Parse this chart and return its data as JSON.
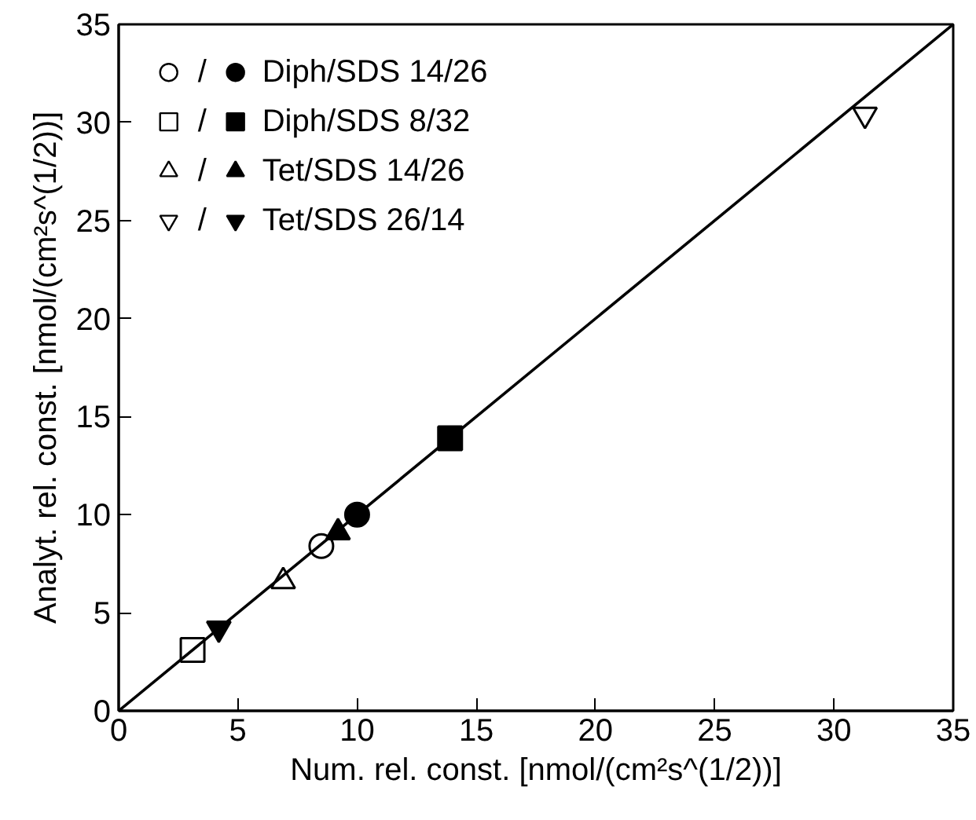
{
  "chart_data": {
    "type": "scatter",
    "xlabel": "Num. rel. const. [nmol/(cm²s^(1/2))]",
    "ylabel": "Analyt. rel. const. [nmol/(cm²s^(1/2))]",
    "xlim": [
      0,
      35
    ],
    "ylim": [
      0,
      35
    ],
    "xticks": [
      0,
      5,
      10,
      15,
      20,
      25,
      30,
      35
    ],
    "yticks": [
      0,
      5,
      10,
      15,
      20,
      25,
      30,
      35
    ],
    "grid": false,
    "legend": "top left",
    "annotations": [
      "/",
      "/",
      "/",
      "/"
    ],
    "series": [
      {
        "marker": "circle",
        "x": [
          8.5
        ],
        "values": [
          8.4
        ],
        "color": "#ffffff"
      },
      {
        "name": "Diph/SDS 14/26",
        "marker": "circle",
        "x": [
          10.0
        ],
        "values": [
          10.0
        ],
        "color": "#000000"
      },
      {
        "marker": "square",
        "x": [
          3.1
        ],
        "values": [
          3.1
        ],
        "color": "#ffffff"
      },
      {
        "name": "Diph/SDS 8/32",
        "marker": "square",
        "x": [
          13.9
        ],
        "values": [
          13.9
        ],
        "color": "#000000"
      },
      {
        "marker": "triangle",
        "x": [
          6.9
        ],
        "values": [
          6.6
        ],
        "color": "#ffffff"
      },
      {
        "name": "Tet/SDS 14/26",
        "marker": "triangle",
        "x": [
          9.2
        ],
        "values": [
          9.1
        ],
        "color": "#000000"
      },
      {
        "x": [
          31.3
        ],
        "values": [
          30.4
        ],
        "color": "#ffffff"
      },
      {
        "name": "Tet/SDS 26/14",
        "x": [
          4.2
        ],
        "values": [
          4.2
        ],
        "color": "#000000"
      },
      {
        "type": "line",
        "x": [
          0,
          35
        ],
        "values": [
          0,
          35
        ],
        "color": "#000000"
      }
    ]
  }
}
